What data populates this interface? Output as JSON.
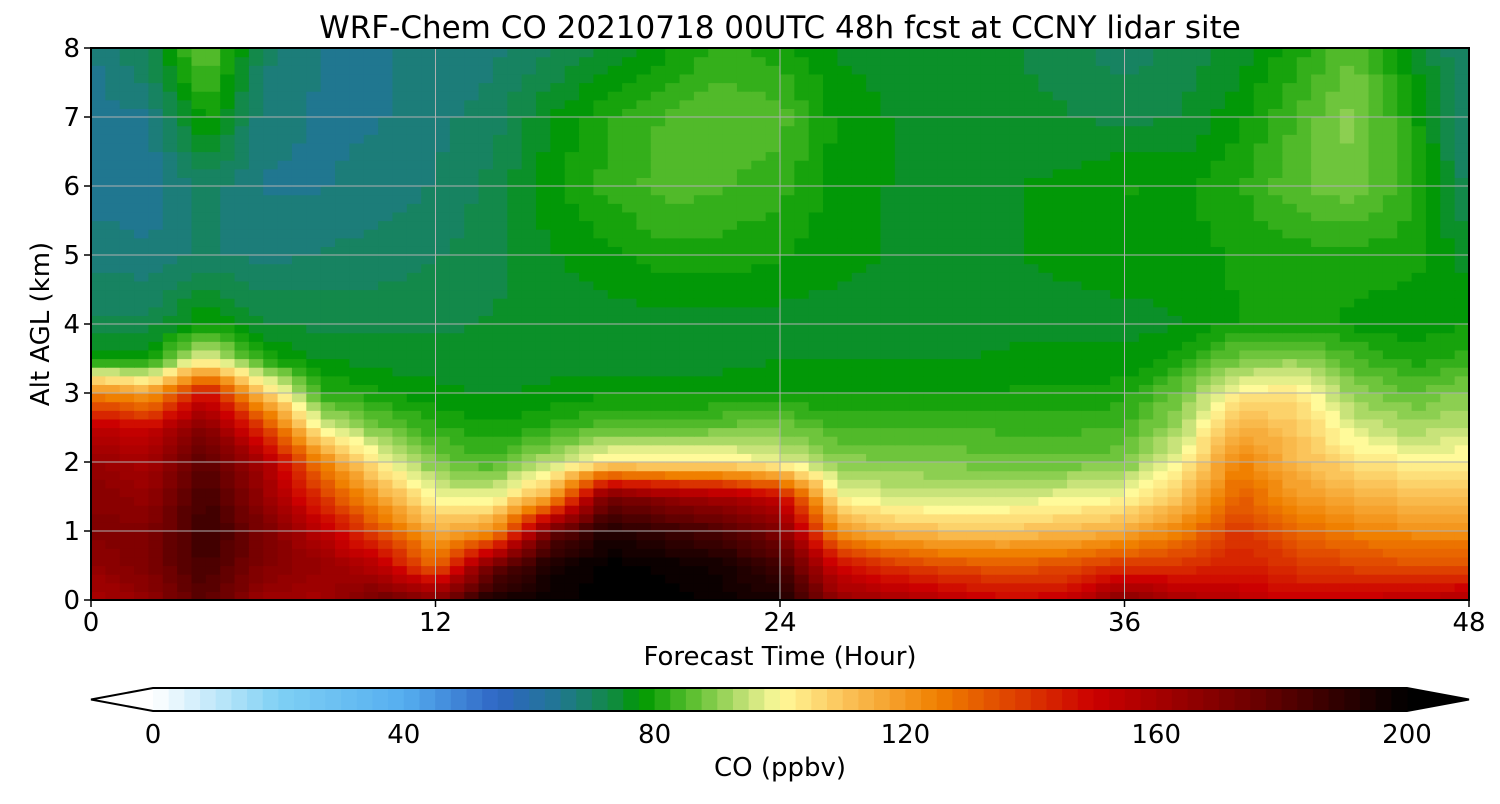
{
  "chart_data": {
    "type": "heatmap",
    "title": "WRF-Chem CO  20210718 00UTC 48h fcst at CCNY lidar site",
    "xlabel": "Forecast Time (Hour)",
    "ylabel": "Alt AGL (km)",
    "xlim": [
      0,
      48
    ],
    "ylim": [
      0,
      8
    ],
    "x_ticks": [
      0,
      12,
      24,
      36,
      48
    ],
    "y_ticks": [
      0,
      1,
      2,
      3,
      4,
      5,
      6,
      7,
      8
    ],
    "grid": true,
    "x": [
      0,
      2,
      4,
      6,
      8,
      10,
      12,
      14,
      16,
      18,
      20,
      22,
      24,
      26,
      28,
      30,
      32,
      34,
      36,
      38,
      40,
      42,
      44,
      46,
      48
    ],
    "y": [
      0,
      0.5,
      1,
      1.5,
      2,
      2.5,
      3,
      3.5,
      4,
      5,
      6,
      7,
      8
    ],
    "z": [
      [
        158,
        165,
        180,
        162,
        160,
        175,
        170,
        195,
        198,
        200,
        200,
        198,
        195,
        165,
        160,
        155,
        150,
        152,
        170,
        160,
        155,
        150,
        152,
        155,
        158
      ],
      [
        165,
        172,
        185,
        170,
        165,
        155,
        130,
        175,
        195,
        200,
        198,
        195,
        185,
        150,
        140,
        135,
        133,
        135,
        140,
        140,
        145,
        140,
        137,
        135,
        135
      ],
      [
        170,
        170,
        188,
        172,
        155,
        135,
        115,
        120,
        175,
        193,
        188,
        182,
        170,
        120,
        112,
        110,
        110,
        112,
        115,
        125,
        140,
        130,
        125,
        122,
        122
      ],
      [
        168,
        165,
        185,
        165,
        140,
        118,
        98,
        98,
        115,
        175,
        165,
        160,
        150,
        100,
        96,
        95,
        96,
        98,
        100,
        110,
        132,
        120,
        115,
        112,
        112
      ],
      [
        165,
        160,
        180,
        160,
        125,
        102,
        88,
        84,
        94,
        103,
        103,
        103,
        98,
        90,
        89,
        88,
        87,
        87,
        88,
        100,
        125,
        112,
        105,
        102,
        102
      ],
      [
        155,
        150,
        170,
        140,
        98,
        88,
        82,
        79,
        82,
        86,
        86,
        87,
        88,
        84,
        84,
        84,
        83,
        83,
        84,
        92,
        115,
        110,
        96,
        92,
        94
      ],
      [
        125,
        118,
        150,
        110,
        82,
        79,
        77,
        76,
        77,
        78,
        78,
        78,
        79,
        78,
        78,
        79,
        79,
        79,
        80,
        88,
        102,
        104,
        90,
        86,
        90
      ],
      [
        78,
        77,
        100,
        80,
        76,
        75,
        75,
        75,
        75,
        75,
        75,
        75,
        76,
        76,
        76,
        76,
        77,
        77,
        77,
        80,
        88,
        90,
        84,
        80,
        82
      ],
      [
        72,
        72,
        79,
        74,
        73,
        73,
        73,
        74,
        74,
        75,
        75,
        75,
        75,
        75,
        75,
        75,
        75,
        75,
        75,
        76,
        79,
        80,
        78,
        77,
        79
      ],
      [
        68,
        67,
        69,
        68,
        69,
        70,
        71,
        73,
        76,
        78,
        80,
        80,
        79,
        77,
        76,
        76,
        76,
        77,
        78,
        78,
        79,
        80,
        80,
        80,
        75
      ],
      [
        65,
        64,
        70,
        66,
        66,
        67,
        69,
        72,
        78,
        82,
        85,
        84,
        82,
        78,
        76,
        76,
        76,
        77,
        79,
        78,
        81,
        86,
        88,
        82,
        70
      ],
      [
        65,
        66,
        80,
        67,
        66,
        66,
        68,
        70,
        76,
        81,
        84,
        86,
        85,
        78,
        76,
        76,
        75,
        74,
        73,
        74,
        78,
        84,
        90,
        80,
        68
      ],
      [
        66,
        72,
        88,
        70,
        66,
        66,
        67,
        68,
        71,
        74,
        78,
        82,
        80,
        76,
        75,
        75,
        74,
        72,
        70,
        72,
        75,
        80,
        86,
        76,
        68
      ]
    ],
    "colorbar": {
      "label": "CO  (ppbv)",
      "min": 0,
      "max": 200,
      "ticks": [
        0,
        40,
        80,
        120,
        160,
        200
      ],
      "extend": "both",
      "colormap": [
        [
          0,
          "#ffffff"
        ],
        [
          20,
          "#7fd0f4"
        ],
        [
          40,
          "#55aef0"
        ],
        [
          55,
          "#2f66c4"
        ],
        [
          65,
          "#207790"
        ],
        [
          73,
          "#128a45"
        ],
        [
          78,
          "#009a00"
        ],
        [
          86,
          "#5cbf30"
        ],
        [
          95,
          "#c8e37a"
        ],
        [
          100,
          "#fffa9a"
        ],
        [
          110,
          "#fbc45a"
        ],
        [
          125,
          "#f08000"
        ],
        [
          150,
          "#cc0000"
        ],
        [
          175,
          "#6e0000"
        ],
        [
          200,
          "#000000"
        ]
      ]
    }
  }
}
